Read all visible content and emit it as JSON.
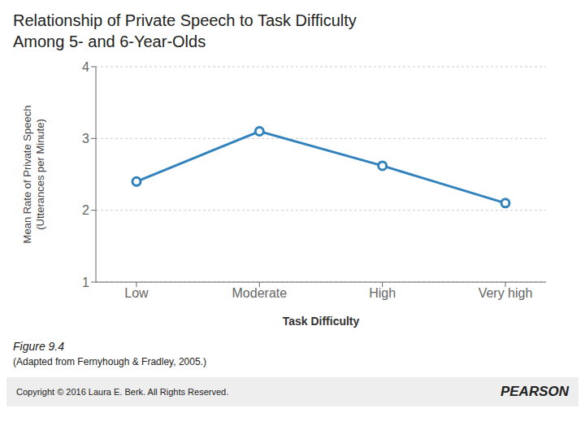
{
  "chart_data": {
    "type": "line",
    "title": "Relationship of Private Speech to Task Difficulty\nAmong 5- and 6-Year-Olds",
    "categories": [
      "Low",
      "Moderate",
      "High",
      "Very high"
    ],
    "values": [
      2.4,
      3.1,
      2.62,
      2.1
    ],
    "xlabel": "Task Difficulty",
    "ylabel": "Mean Rate of Private Speech\n(Utterances per Minute)",
    "ylim": [
      1,
      4
    ],
    "yticks": [
      1,
      2,
      3,
      4
    ],
    "grid": true,
    "marker": "circle",
    "annotations": [
      "Figure 9.4",
      "(Adapted from Fernyhough & Fradley, 2005.)",
      "Copyright © 2016 Laura E. Berk. All Rights Reserved.",
      "PEARSON"
    ]
  }
}
